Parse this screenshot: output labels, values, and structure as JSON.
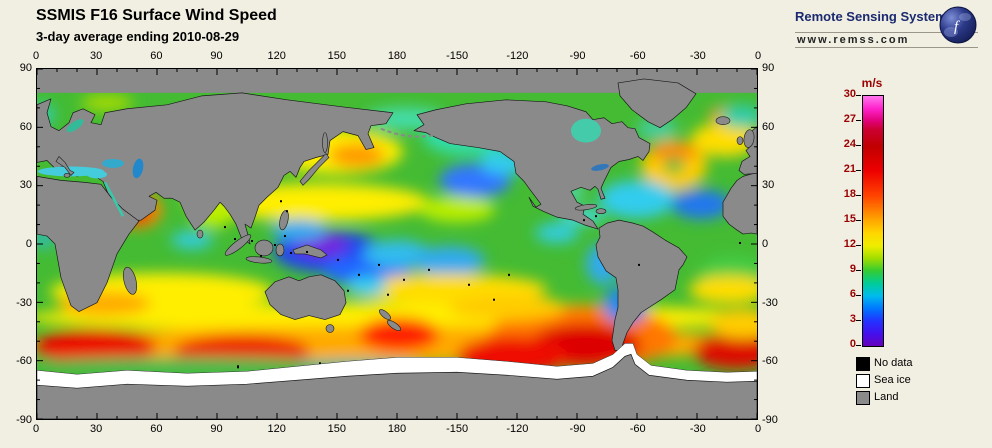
{
  "header": {
    "title": "SSMIS F16 Surface Wind Speed",
    "subtitle": "3-day average ending 2010-08-29"
  },
  "branding": {
    "name": "Remote Sensing Systems",
    "url": "www.remss.com"
  },
  "map": {
    "lon_ticks": [
      "0",
      "30",
      "60",
      "90",
      "120",
      "150",
      "180",
      "-150",
      "-120",
      "-90",
      "-60",
      "-30",
      "0"
    ],
    "lat_ticks": [
      "90",
      "60",
      "30",
      "0",
      "-30",
      "-60",
      "-90"
    ]
  },
  "colorbar": {
    "unit": "m/s",
    "min": 0,
    "max": 30,
    "ticks": [
      "30",
      "27",
      "24",
      "21",
      "18",
      "15",
      "12",
      "9",
      "6",
      "3",
      "0"
    ],
    "stops": [
      {
        "value": 0,
        "color": "#6600bb"
      },
      {
        "value": 1.5,
        "color": "#4411ee"
      },
      {
        "value": 3,
        "color": "#2233ff"
      },
      {
        "value": 4.5,
        "color": "#0077ff"
      },
      {
        "value": 6,
        "color": "#00bbee"
      },
      {
        "value": 7.5,
        "color": "#00cc99"
      },
      {
        "value": 9,
        "color": "#33cc33"
      },
      {
        "value": 10.5,
        "color": "#a0dd00"
      },
      {
        "value": 12,
        "color": "#eeee00"
      },
      {
        "value": 13.5,
        "color": "#ffd700"
      },
      {
        "value": 15,
        "color": "#ffaa00"
      },
      {
        "value": 16.5,
        "color": "#ff7700"
      },
      {
        "value": 18,
        "color": "#ff4400"
      },
      {
        "value": 21,
        "color": "#ee0000"
      },
      {
        "value": 24,
        "color": "#c00000"
      },
      {
        "value": 26,
        "color": "#cc0033"
      },
      {
        "value": 27,
        "color": "#e00077"
      },
      {
        "value": 28.5,
        "color": "#ff22cc"
      },
      {
        "value": 30,
        "color": "#ff77ee"
      }
    ]
  },
  "legend": [
    {
      "label": "No data",
      "color": "#000000"
    },
    {
      "label": "Sea ice",
      "color": "#ffffff"
    },
    {
      "label": "Land",
      "color": "#8a8a8a"
    }
  ],
  "colors": {
    "background": "#f1efe2",
    "land": "#8a8a8a",
    "sea_ice": "#ffffff",
    "no_data": "#000000",
    "tick_label": "#990000"
  },
  "chart_data": {
    "type": "heatmap",
    "title": "SSMIS F16 Surface Wind Speed",
    "subtitle": "3-day average ending 2010-08-29",
    "units": "m/s",
    "colorbar": {
      "min": 0,
      "max": 30,
      "ticks": [
        30,
        27,
        24,
        21,
        18,
        15,
        12,
        9,
        6,
        3,
        0
      ]
    },
    "x_axis": {
      "ticks": [
        0,
        30,
        60,
        90,
        120,
        150,
        180,
        -150,
        -120,
        -90,
        -60,
        -30,
        0
      ]
    },
    "y_axis": {
      "ticks": [
        90,
        60,
        30,
        0,
        -30,
        -60,
        -90
      ]
    },
    "legend": [
      "No data",
      "Sea ice",
      "Land"
    ]
  }
}
